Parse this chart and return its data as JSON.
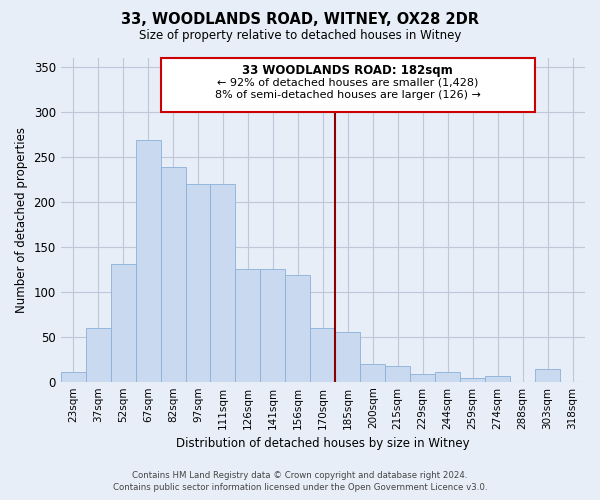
{
  "title": "33, WOODLANDS ROAD, WITNEY, OX28 2DR",
  "subtitle": "Size of property relative to detached houses in Witney",
  "xlabel": "Distribution of detached houses by size in Witney",
  "ylabel": "Number of detached properties",
  "bar_labels": [
    "23sqm",
    "37sqm",
    "52sqm",
    "67sqm",
    "82sqm",
    "97sqm",
    "111sqm",
    "126sqm",
    "141sqm",
    "156sqm",
    "170sqm",
    "185sqm",
    "200sqm",
    "215sqm",
    "229sqm",
    "244sqm",
    "259sqm",
    "274sqm",
    "288sqm",
    "303sqm",
    "318sqm"
  ],
  "bar_heights": [
    11,
    60,
    131,
    268,
    238,
    220,
    220,
    125,
    125,
    118,
    60,
    55,
    20,
    17,
    8,
    11,
    4,
    6,
    0,
    14,
    0
  ],
  "bar_color": "#c8d9f0",
  "bar_edge_color": "#8ab0d8",
  "vline_x": 10.5,
  "vline_color": "#8b0000",
  "ylim": [
    0,
    360
  ],
  "yticks": [
    0,
    50,
    100,
    150,
    200,
    250,
    300,
    350
  ],
  "annotation_title": "33 WOODLANDS ROAD: 182sqm",
  "annotation_line1": "← 92% of detached houses are smaller (1,428)",
  "annotation_line2": "8% of semi-detached houses are larger (126) →",
  "annotation_box_color": "#ffffff",
  "annotation_box_edge": "#cc0000",
  "footer_line1": "Contains HM Land Registry data © Crown copyright and database right 2024.",
  "footer_line2": "Contains public sector information licensed under the Open Government Licence v3.0.",
  "bar_width": 1.0,
  "background_color": "#e8eef8",
  "grid_color": "#c0c8d8"
}
